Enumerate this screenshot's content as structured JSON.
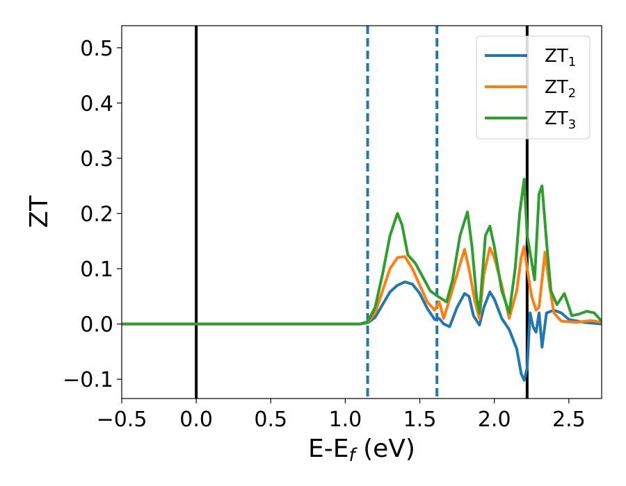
{
  "chart_data": {
    "type": "line",
    "title": "",
    "xlabel": "E-E",
    "xlabel_sub": "f",
    "xlabel_unit": " (eV)",
    "ylabel": "ZT",
    "xlim": [
      -0.5,
      2.72
    ],
    "ylim": [
      -0.135,
      0.54
    ],
    "xticks": [
      -0.5,
      0.0,
      0.5,
      1.0,
      1.5,
      2.0,
      2.5
    ],
    "xtick_labels": [
      "−0.5",
      "0.0",
      "0.5",
      "1.0",
      "1.5",
      "2.0",
      "2.5"
    ],
    "yticks": [
      -0.1,
      0.0,
      0.1,
      0.2,
      0.3,
      0.4,
      0.5
    ],
    "ytick_labels": [
      "−0.1",
      "0.0",
      "0.1",
      "0.2",
      "0.3",
      "0.4",
      "0.5"
    ],
    "grid": false,
    "legend_position": "top-right",
    "vlines": [
      {
        "x": 0.0,
        "style": "solid",
        "color": "#000000"
      },
      {
        "x": 1.15,
        "style": "dashed",
        "color": "#1f77b4"
      },
      {
        "x": 1.615,
        "style": "dashed",
        "color": "#1f77b4"
      },
      {
        "x": 2.22,
        "style": "solid",
        "color": "#000000"
      }
    ],
    "series": [
      {
        "name": "ZT",
        "name_sub": "1",
        "color": "#1f77b4",
        "points": [
          [
            -0.5,
            0
          ],
          [
            1.1,
            0
          ],
          [
            1.15,
            0.002
          ],
          [
            1.2,
            0.012
          ],
          [
            1.25,
            0.035
          ],
          [
            1.3,
            0.058
          ],
          [
            1.35,
            0.07
          ],
          [
            1.4,
            0.076
          ],
          [
            1.45,
            0.072
          ],
          [
            1.5,
            0.055
          ],
          [
            1.55,
            0.028
          ],
          [
            1.6,
            0.008
          ],
          [
            1.63,
            0.01
          ],
          [
            1.66,
            0.0
          ],
          [
            1.7,
            -0.005
          ],
          [
            1.75,
            0.03
          ],
          [
            1.8,
            0.055
          ],
          [
            1.83,
            0.05
          ],
          [
            1.86,
            0.015
          ],
          [
            1.9,
            -0.002
          ],
          [
            1.93,
            0.03
          ],
          [
            1.97,
            0.058
          ],
          [
            2.0,
            0.045
          ],
          [
            2.05,
            0.01
          ],
          [
            2.1,
            -0.01
          ],
          [
            2.15,
            -0.045
          ],
          [
            2.18,
            -0.09
          ],
          [
            2.2,
            -0.102
          ],
          [
            2.22,
            -0.08
          ],
          [
            2.24,
            0.02
          ],
          [
            2.26,
            -0.005
          ],
          [
            2.28,
            -0.015
          ],
          [
            2.3,
            0.02
          ],
          [
            2.32,
            -0.042
          ],
          [
            2.35,
            0.02
          ],
          [
            2.4,
            0.025
          ],
          [
            2.45,
            0.02
          ],
          [
            2.5,
            0.008
          ],
          [
            2.6,
            0.003
          ],
          [
            2.72,
            0.0
          ]
        ]
      },
      {
        "name": "ZT",
        "name_sub": "2",
        "color": "#ff7f0e",
        "points": [
          [
            -0.5,
            0
          ],
          [
            1.1,
            0
          ],
          [
            1.15,
            0.003
          ],
          [
            1.2,
            0.02
          ],
          [
            1.25,
            0.06
          ],
          [
            1.3,
            0.1
          ],
          [
            1.35,
            0.12
          ],
          [
            1.4,
            0.122
          ],
          [
            1.45,
            0.1
          ],
          [
            1.5,
            0.07
          ],
          [
            1.55,
            0.04
          ],
          [
            1.6,
            0.025
          ],
          [
            1.63,
            0.04
          ],
          [
            1.66,
            0.01
          ],
          [
            1.7,
            0.045
          ],
          [
            1.75,
            0.09
          ],
          [
            1.8,
            0.135
          ],
          [
            1.83,
            0.1
          ],
          [
            1.87,
            0.04
          ],
          [
            1.9,
            0.01
          ],
          [
            1.93,
            0.09
          ],
          [
            1.97,
            0.138
          ],
          [
            2.0,
            0.12
          ],
          [
            2.05,
            0.07
          ],
          [
            2.1,
            0.01
          ],
          [
            2.15,
            0.06
          ],
          [
            2.18,
            0.12
          ],
          [
            2.2,
            0.14
          ],
          [
            2.22,
            0.1
          ],
          [
            2.25,
            0.05
          ],
          [
            2.28,
            0.025
          ],
          [
            2.3,
            0.03
          ],
          [
            2.32,
            0.08
          ],
          [
            2.34,
            0.13
          ],
          [
            2.37,
            0.07
          ],
          [
            2.4,
            0.02
          ],
          [
            2.45,
            0.005
          ],
          [
            2.55,
            0.003
          ],
          [
            2.65,
            0.006
          ],
          [
            2.72,
            0.003
          ]
        ]
      },
      {
        "name": "ZT",
        "name_sub": "3",
        "color": "#2ca02c",
        "points": [
          [
            -0.5,
            0
          ],
          [
            1.1,
            0
          ],
          [
            1.15,
            0.004
          ],
          [
            1.2,
            0.03
          ],
          [
            1.25,
            0.09
          ],
          [
            1.3,
            0.16
          ],
          [
            1.35,
            0.2
          ],
          [
            1.38,
            0.18
          ],
          [
            1.42,
            0.125
          ],
          [
            1.47,
            0.11
          ],
          [
            1.52,
            0.085
          ],
          [
            1.57,
            0.06
          ],
          [
            1.62,
            0.05
          ],
          [
            1.65,
            0.045
          ],
          [
            1.68,
            0.04
          ],
          [
            1.72,
            0.08
          ],
          [
            1.77,
            0.16
          ],
          [
            1.82,
            0.203
          ],
          [
            1.85,
            0.14
          ],
          [
            1.88,
            0.05
          ],
          [
            1.9,
            0.02
          ],
          [
            1.94,
            0.16
          ],
          [
            1.97,
            0.177
          ],
          [
            2.0,
            0.14
          ],
          [
            2.05,
            0.06
          ],
          [
            2.1,
            0.02
          ],
          [
            2.14,
            0.1
          ],
          [
            2.17,
            0.2
          ],
          [
            2.2,
            0.262
          ],
          [
            2.22,
            0.16
          ],
          [
            2.24,
            0.13
          ],
          [
            2.27,
            0.08
          ],
          [
            2.3,
            0.235
          ],
          [
            2.32,
            0.25
          ],
          [
            2.35,
            0.15
          ],
          [
            2.38,
            0.06
          ],
          [
            2.42,
            0.035
          ],
          [
            2.47,
            0.055
          ],
          [
            2.52,
            0.015
          ],
          [
            2.57,
            0.018
          ],
          [
            2.62,
            0.023
          ],
          [
            2.67,
            0.02
          ],
          [
            2.72,
            0.005
          ]
        ]
      }
    ]
  }
}
